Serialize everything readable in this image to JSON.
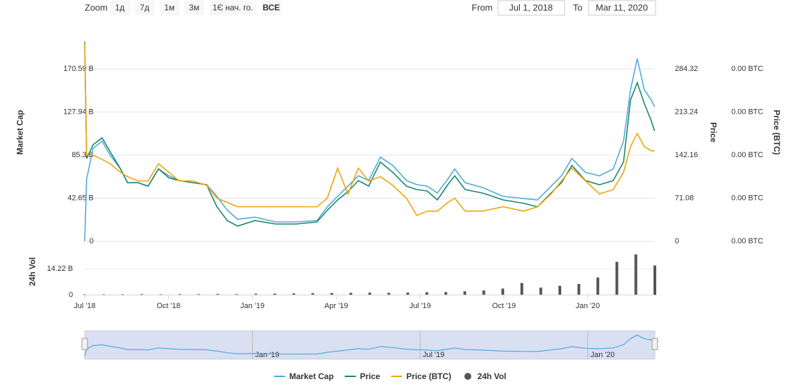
{
  "toolbar": {
    "zoom_label": "Zoom",
    "buttons": [
      "1д",
      "7д",
      "1м",
      "3м",
      "1Є нач. го.",
      "ВСЕ"
    ],
    "from_label": "From",
    "from": "Jul 1, 2018",
    "to_label": "To",
    "to": "Mar 11, 2020"
  },
  "chart_data": {
    "type": "line",
    "xlim": [
      0,
      20.4
    ],
    "xticks": [
      {
        "value": 0,
        "label": "Jul '18"
      },
      {
        "value": 3,
        "label": "Oct '18"
      },
      {
        "value": 6,
        "label": "Jan '19"
      },
      {
        "value": 9,
        "label": "Apr '19"
      },
      {
        "value": 12,
        "label": "Jul '19"
      },
      {
        "value": 15,
        "label": "Oct '19"
      },
      {
        "value": 18,
        "label": "Jan '20"
      }
    ],
    "x": [
      0,
      0.07,
      0.3,
      0.62,
      0.91,
      1.28,
      1.53,
      1.9,
      2.27,
      2.64,
      3.01,
      3.38,
      3.87,
      4.36,
      4.73,
      5.1,
      5.47,
      6.09,
      6.83,
      7.57,
      8.31,
      8.68,
      9.05,
      9.42,
      9.79,
      10.16,
      10.58,
      11.02,
      11.51,
      11.88,
      12.25,
      12.62,
      12.99,
      13.24,
      13.61,
      14.23,
      14.97,
      15.71,
      16.2,
      16.69,
      17.06,
      17.43,
      17.92,
      18.42,
      18.91,
      19.28,
      19.53,
      19.77,
      20.02,
      20.27,
      20.39
    ],
    "ylabel": "Market Cap",
    "ylim": [
      0,
      204.71
    ],
    "yticks": [
      0,
      {
        "value": 42.65,
        "label": "42.65 B"
      },
      {
        "value": 85.3,
        "label": "85.3 B"
      },
      {
        "value": 127.94,
        "label": "127.94 B"
      },
      {
        "value": 170.59,
        "label": "170.59 B"
      }
    ],
    "y2label": "Price",
    "y2lim": [
      0,
      341.18
    ],
    "y2ticks": [
      0,
      71.08,
      142.16,
      213.24,
      284.32
    ],
    "y3label": "Price (BTC)",
    "y3lim": [
      0,
      0.0048
    ],
    "y3ticks": [
      {
        "value": 0,
        "label": "0.00 BTC"
      },
      {
        "value": 0.001,
        "label": "0.00 BTC"
      },
      {
        "value": 0.002,
        "label": "0.00 BTC"
      },
      {
        "value": 0.003,
        "label": "0.00 BTC"
      },
      {
        "value": 0.004,
        "label": "0.00 BTC"
      }
    ],
    "series": [
      {
        "name": "Market Cap",
        "color": "#4fa9d9",
        "values": [
          0,
          61.4,
          92.1,
          99.0,
          85.3,
          71.6,
          58.0,
          58.0,
          54.6,
          71.6,
          64.8,
          60.1,
          58.0,
          56.0,
          44.4,
          30.7,
          21.8,
          23.9,
          19.1,
          19.1,
          20.5,
          34.1,
          44.4,
          54.6,
          64.8,
          60.1,
          83.3,
          75.1,
          60.1,
          56.0,
          54.6,
          47.8,
          61.4,
          71.6,
          58.0,
          53.2,
          44.4,
          42.3,
          40.9,
          54.6,
          64.8,
          81.9,
          68.2,
          64.8,
          71.6,
          99.0,
          150.1,
          180.8,
          150.1,
          139.9,
          133.1
        ]
      },
      {
        "name": "Price",
        "color": "#16876a",
        "axis": "y2",
        "values": [
          329.0,
          136.5,
          159.2,
          170.6,
          147.8,
          119.4,
          96.7,
          96.7,
          91.0,
          119.4,
          104.6,
          100.1,
          96.7,
          93.3,
          56.9,
          34.1,
          25.0,
          34.1,
          28.4,
          28.4,
          31.8,
          51.2,
          68.2,
          81.9,
          100.1,
          91.0,
          130.8,
          113.7,
          91.0,
          85.3,
          83.0,
          68.2,
          93.3,
          108.0,
          85.3,
          79.6,
          68.2,
          62.6,
          56.9,
          79.6,
          96.7,
          125.1,
          100.1,
          93.3,
          100.1,
          130.8,
          233.1,
          261.6,
          227.5,
          199.0,
          182.0
        ]
      },
      {
        "name": "Price (BTC)",
        "color": "#f0a30a",
        "axis": "y3",
        "values": [
          0.0046,
          0.002,
          0.002,
          0.0019,
          0.0018,
          0.0016,
          0.0015,
          0.0014,
          0.0014,
          0.0018,
          0.0016,
          0.0014,
          0.0014,
          0.0013,
          0.001,
          0.0009,
          0.0008,
          0.0008,
          0.0008,
          0.0008,
          0.0008,
          0.001,
          0.0017,
          0.0011,
          0.0017,
          0.0014,
          0.0015,
          0.0013,
          0.001,
          0.0006,
          0.0007,
          0.0007,
          0.0009,
          0.001,
          0.0007,
          0.0007,
          0.0008,
          0.0007,
          0.0008,
          0.0011,
          0.0014,
          0.0017,
          0.0014,
          0.0011,
          0.0012,
          0.0016,
          0.0022,
          0.0025,
          0.0022,
          0.0021,
          0.0021
        ]
      }
    ],
    "volume": {
      "name": "24h Vol",
      "color": "#555555",
      "ylabel": "24h Vol",
      "ylim": [
        0,
        25.4
      ],
      "yticks": [
        0,
        {
          "value": 14.22,
          "label": "14.22 B"
        }
      ],
      "x": [
        0,
        0.68,
        1.36,
        2.04,
        2.72,
        3.4,
        4.08,
        4.76,
        5.44,
        6.12,
        6.8,
        7.48,
        8.16,
        8.84,
        9.52,
        10.2,
        10.88,
        11.56,
        12.24,
        12.92,
        13.6,
        14.28,
        14.96,
        15.64,
        16.32,
        17.0,
        17.68,
        18.36,
        19.04,
        19.72,
        20.4
      ],
      "values": [
        0.3,
        0.4,
        0.4,
        0.5,
        0.4,
        0.5,
        0.5,
        0.6,
        0.5,
        0.7,
        0.8,
        0.9,
        1.0,
        1.1,
        1.2,
        1.3,
        1.2,
        1.3,
        1.5,
        1.6,
        2.0,
        2.5,
        3.5,
        6.5,
        4.0,
        5.0,
        6.0,
        9.5,
        18.0,
        22.0,
        16.0
      ]
    }
  }
}
